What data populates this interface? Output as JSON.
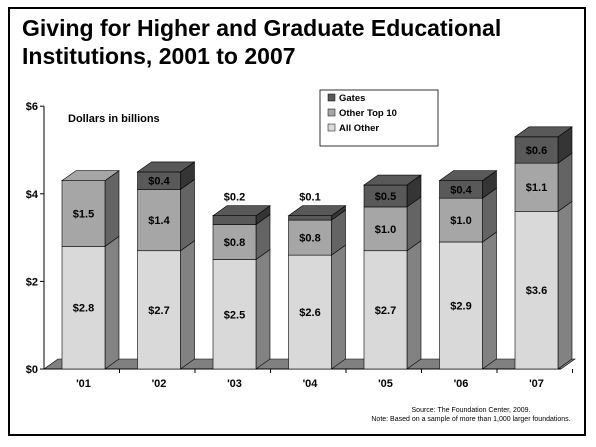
{
  "title_lines": [
    "Giving for Higher and Graduate Educational",
    "Institutions, 2001 to 2007"
  ],
  "unit_note": "Dollars in billions",
  "source_lines": [
    "Source: The Foundation Center, 2009.",
    "Note: Based on a sample of more than 1,000 larger foundations."
  ],
  "colors": {
    "all_other": "#d9d9d9",
    "other_top10": "#a6a6a6",
    "gates": "#595959",
    "side_shade_factor": 0.6
  },
  "chart_data": {
    "type": "bar",
    "stacked": true,
    "categories": [
      "'01",
      "'02",
      "'03",
      "'04",
      "'05",
      "'06",
      "'07"
    ],
    "series": [
      {
        "name": "All Other",
        "values": [
          2.8,
          2.7,
          2.5,
          2.6,
          2.7,
          2.9,
          3.6
        ],
        "labels": [
          "$2.8",
          "$2.7",
          "$2.5",
          "$2.6",
          "$2.7",
          "$2.9",
          "$3.6"
        ]
      },
      {
        "name": "Other Top 10",
        "values": [
          1.5,
          1.4,
          0.8,
          0.8,
          1.0,
          1.0,
          1.1
        ],
        "labels": [
          "$1.5",
          "$1.4",
          "$0.8",
          "$0.8",
          "$1.0",
          "$1.0",
          "$1.1"
        ]
      },
      {
        "name": "Gates",
        "values": [
          0,
          0.4,
          0.2,
          0.1,
          0.5,
          0.4,
          0.6
        ],
        "labels": [
          "",
          "$0.4",
          "$0.2",
          "$0.1",
          "$0.5",
          "$0.4",
          "$0.6"
        ]
      }
    ],
    "ylim": [
      0,
      6
    ],
    "yticks": [
      0,
      2,
      4,
      6
    ],
    "ytick_labels": [
      "$0",
      "$2",
      "$4",
      "$6"
    ],
    "legend_position": "top-right",
    "grid": false
  }
}
